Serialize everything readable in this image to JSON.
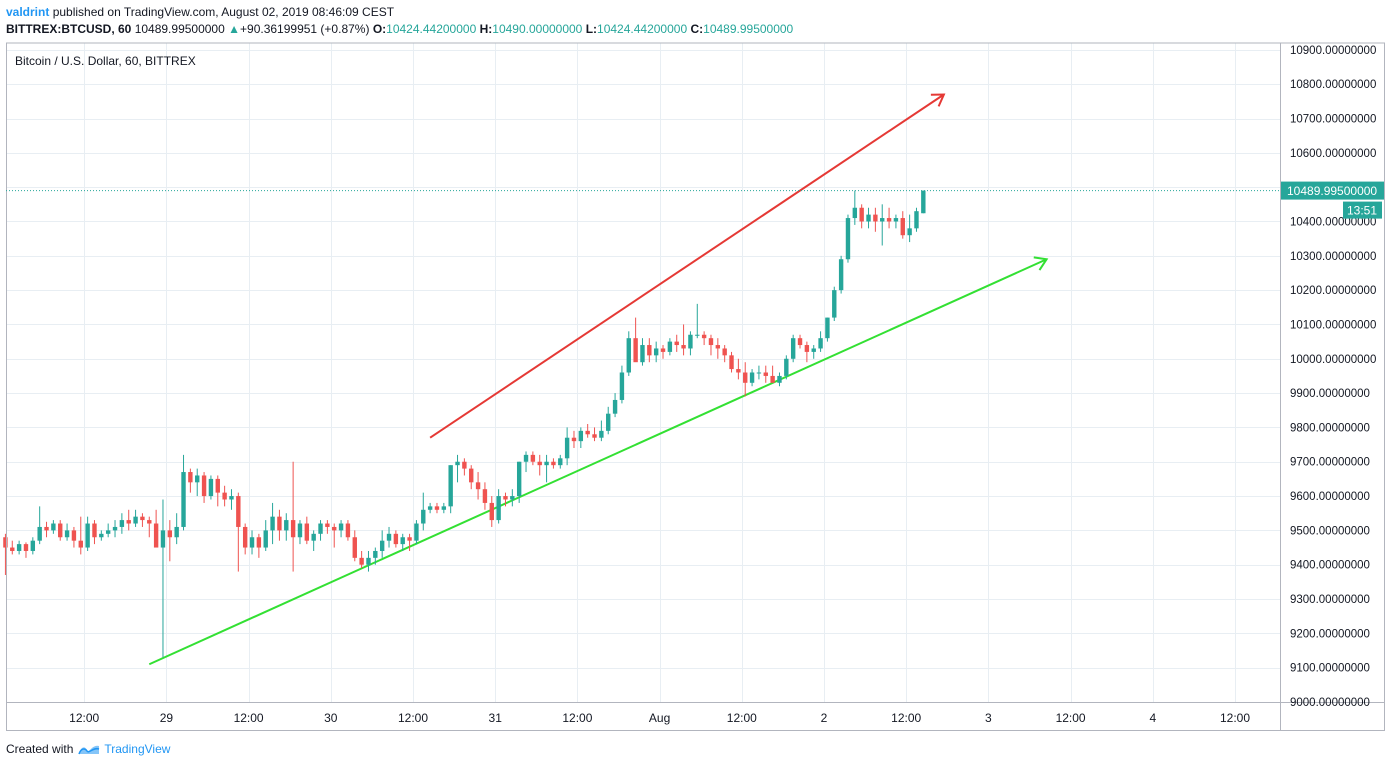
{
  "header": {
    "user": "valdrint",
    "published_text": "published on TradingView.com, August 02, 2019 08:46:09 CEST",
    "symbol": "BITTREX:BTCUSD, 60",
    "last_price": "10489.99500000",
    "change": "+90.36199951 (+0.87%)",
    "open_label": "O:",
    "open_value": "10424.44200000",
    "high_label": "H:",
    "high_value": "10490.00000000",
    "low_label": "L:",
    "low_value": "10424.44200000",
    "close_label": "C:",
    "close_value": "10489.99500000"
  },
  "footer": {
    "created_with": "Created with",
    "brand": "TradingView"
  },
  "colors": {
    "up": "#26a69a",
    "down": "#ef5350",
    "resistance": "#e53935",
    "support": "#33e033",
    "grid": "#e8eef3",
    "price_line": "#26a69a"
  },
  "chart_data": {
    "type": "candlestick",
    "title": "Bitcoin / U.S. Dollar, 60, BITTREX",
    "last_price_label": "10489.99500000",
    "countdown_label": "13:51",
    "ylim": [
      9000,
      10920
    ],
    "y_ticks": [
      {
        "value": 9000,
        "label": "9000.00000000"
      },
      {
        "value": 9100,
        "label": "9100.00000000"
      },
      {
        "value": 9200,
        "label": "9200.00000000"
      },
      {
        "value": 9300,
        "label": "9300.00000000"
      },
      {
        "value": 9400,
        "label": "9400.00000000"
      },
      {
        "value": 9500,
        "label": "9500.00000000"
      },
      {
        "value": 9600,
        "label": "9600.00000000"
      },
      {
        "value": 9700,
        "label": "9700.00000000"
      },
      {
        "value": 9800,
        "label": "9800.00000000"
      },
      {
        "value": 9900,
        "label": "9900.00000000"
      },
      {
        "value": 10000,
        "label": "10000.00000000"
      },
      {
        "value": 10100,
        "label": "10100.00000000"
      },
      {
        "value": 10200,
        "label": "10200.00000000"
      },
      {
        "value": 10300,
        "label": "10300.00000000"
      },
      {
        "value": 10400,
        "label": "10400.00000000"
      },
      {
        "value": 10500,
        "label": "10500.00000000"
      },
      {
        "value": 10600,
        "label": "10600.00000000"
      },
      {
        "value": 10700,
        "label": "10700.00000000"
      },
      {
        "value": 10800,
        "label": "10800.00000000"
      },
      {
        "value": 10900,
        "label": "10900.00000000"
      }
    ],
    "x_ticks": [
      {
        "label": "12:00",
        "t": 12
      },
      {
        "label": "29",
        "t": 24
      },
      {
        "label": "12:00",
        "t": 36
      },
      {
        "label": "30",
        "t": 48
      },
      {
        "label": "12:00",
        "t": 60
      },
      {
        "label": "31",
        "t": 72
      },
      {
        "label": "12:00",
        "t": 84
      },
      {
        "label": "Aug",
        "t": 96
      },
      {
        "label": "12:00",
        "t": 108
      },
      {
        "label": "2",
        "t": 120
      },
      {
        "label": "12:00",
        "t": 132
      },
      {
        "label": "3",
        "t": 144
      },
      {
        "label": "12:00",
        "t": 156
      },
      {
        "label": "4",
        "t": 168
      },
      {
        "label": "12:00",
        "t": 180
      }
    ],
    "candles": [
      [
        9480,
        9490,
        9370,
        9450
      ],
      [
        9450,
        9470,
        9430,
        9440
      ],
      [
        9440,
        9470,
        9430,
        9460
      ],
      [
        9460,
        9465,
        9420,
        9440
      ],
      [
        9440,
        9480,
        9430,
        9470
      ],
      [
        9470,
        9570,
        9460,
        9510
      ],
      [
        9510,
        9525,
        9480,
        9500
      ],
      [
        9500,
        9530,
        9490,
        9520
      ],
      [
        9520,
        9530,
        9470,
        9480
      ],
      [
        9480,
        9520,
        9470,
        9500
      ],
      [
        9500,
        9510,
        9450,
        9470
      ],
      [
        9470,
        9540,
        9430,
        9450
      ],
      [
        9450,
        9540,
        9440,
        9520
      ],
      [
        9520,
        9530,
        9460,
        9480
      ],
      [
        9480,
        9500,
        9470,
        9490
      ],
      [
        9490,
        9520,
        9480,
        9500
      ],
      [
        9500,
        9530,
        9480,
        9510
      ],
      [
        9510,
        9550,
        9490,
        9530
      ],
      [
        9530,
        9560,
        9500,
        9520
      ],
      [
        9520,
        9560,
        9510,
        9540
      ],
      [
        9540,
        9550,
        9510,
        9530
      ],
      [
        9530,
        9540,
        9480,
        9520
      ],
      [
        9520,
        9560,
        9460,
        9450
      ],
      [
        9450,
        9590,
        9130,
        9500
      ],
      [
        9500,
        9530,
        9410,
        9480
      ],
      [
        9480,
        9550,
        9460,
        9510
      ],
      [
        9510,
        9720,
        9500,
        9670
      ],
      [
        9670,
        9680,
        9610,
        9640
      ],
      [
        9640,
        9680,
        9600,
        9660
      ],
      [
        9660,
        9670,
        9580,
        9600
      ],
      [
        9600,
        9660,
        9590,
        9650
      ],
      [
        9650,
        9660,
        9570,
        9610
      ],
      [
        9610,
        9630,
        9570,
        9590
      ],
      [
        9590,
        9620,
        9560,
        9600
      ],
      [
        9600,
        9610,
        9380,
        9510
      ],
      [
        9510,
        9520,
        9430,
        9450
      ],
      [
        9450,
        9500,
        9430,
        9480
      ],
      [
        9480,
        9490,
        9420,
        9450
      ],
      [
        9450,
        9530,
        9440,
        9500
      ],
      [
        9500,
        9580,
        9460,
        9540
      ],
      [
        9540,
        9560,
        9470,
        9500
      ],
      [
        9500,
        9550,
        9470,
        9530
      ],
      [
        9530,
        9700,
        9380,
        9480
      ],
      [
        9480,
        9530,
        9460,
        9520
      ],
      [
        9520,
        9540,
        9460,
        9470
      ],
      [
        9470,
        9500,
        9440,
        9490
      ],
      [
        9490,
        9530,
        9470,
        9520
      ],
      [
        9520,
        9530,
        9490,
        9510
      ],
      [
        9510,
        9520,
        9450,
        9500
      ],
      [
        9500,
        9530,
        9480,
        9520
      ],
      [
        9520,
        9530,
        9470,
        9480
      ],
      [
        9480,
        9500,
        9410,
        9420
      ],
      [
        9420,
        9440,
        9390,
        9400
      ],
      [
        9400,
        9440,
        9380,
        9420
      ],
      [
        9420,
        9450,
        9400,
        9440
      ],
      [
        9440,
        9500,
        9420,
        9470
      ],
      [
        9470,
        9510,
        9450,
        9490
      ],
      [
        9490,
        9500,
        9450,
        9460
      ],
      [
        9460,
        9490,
        9440,
        9480
      ],
      [
        9480,
        9490,
        9440,
        9470
      ],
      [
        9470,
        9530,
        9460,
        9520
      ],
      [
        9520,
        9610,
        9500,
        9560
      ],
      [
        9560,
        9580,
        9550,
        9570
      ],
      [
        9570,
        9580,
        9550,
        9560
      ],
      [
        9560,
        9580,
        9550,
        9570
      ],
      [
        9570,
        9690,
        9550,
        9690
      ],
      [
        9690,
        9720,
        9640,
        9700
      ],
      [
        9700,
        9710,
        9660,
        9680
      ],
      [
        9680,
        9690,
        9620,
        9640
      ],
      [
        9640,
        9670,
        9590,
        9620
      ],
      [
        9620,
        9640,
        9560,
        9580
      ],
      [
        9580,
        9600,
        9510,
        9530
      ],
      [
        9530,
        9620,
        9520,
        9600
      ],
      [
        9600,
        9610,
        9570,
        9590
      ],
      [
        9590,
        9620,
        9570,
        9600
      ],
      [
        9600,
        9700,
        9580,
        9700
      ],
      [
        9700,
        9730,
        9670,
        9720
      ],
      [
        9720,
        9730,
        9690,
        9700
      ],
      [
        9700,
        9720,
        9660,
        9690
      ],
      [
        9690,
        9720,
        9640,
        9700
      ],
      [
        9700,
        9710,
        9680,
        9690
      ],
      [
        9690,
        9720,
        9680,
        9710
      ],
      [
        9710,
        9800,
        9690,
        9770
      ],
      [
        9770,
        9790,
        9740,
        9760
      ],
      [
        9760,
        9800,
        9740,
        9790
      ],
      [
        9790,
        9810,
        9770,
        9780
      ],
      [
        9780,
        9800,
        9760,
        9770
      ],
      [
        9770,
        9820,
        9760,
        9790
      ],
      [
        9790,
        9860,
        9780,
        9840
      ],
      [
        9840,
        9900,
        9830,
        9880
      ],
      [
        9880,
        9980,
        9870,
        9960
      ],
      [
        9960,
        10080,
        9950,
        10060
      ],
      [
        10060,
        10120,
        10000,
        9990
      ],
      [
        9990,
        10060,
        9980,
        10040
      ],
      [
        10040,
        10060,
        9990,
        10010
      ],
      [
        10010,
        10050,
        9990,
        10030
      ],
      [
        10030,
        10040,
        10000,
        10020
      ],
      [
        10020,
        10060,
        10010,
        10050
      ],
      [
        10050,
        10070,
        10020,
        10040
      ],
      [
        10040,
        10100,
        10010,
        10030
      ],
      [
        10030,
        10080,
        10010,
        10070
      ],
      [
        10070,
        10160,
        10060,
        10070
      ],
      [
        10070,
        10080,
        10040,
        10060
      ],
      [
        10060,
        10070,
        10010,
        10040
      ],
      [
        10040,
        10060,
        10000,
        10030
      ],
      [
        10030,
        10040,
        9990,
        10010
      ],
      [
        10010,
        10020,
        9960,
        9970
      ],
      [
        9970,
        10000,
        9940,
        9960
      ],
      [
        9960,
        9990,
        9890,
        9930
      ],
      [
        9930,
        9970,
        9920,
        9960
      ],
      [
        9960,
        9980,
        9940,
        9960
      ],
      [
        9960,
        9980,
        9930,
        9950
      ],
      [
        9950,
        9980,
        9930,
        9930
      ],
      [
        9930,
        9960,
        9920,
        9950
      ],
      [
        9950,
        10010,
        9940,
        10000
      ],
      [
        10000,
        10070,
        9990,
        10060
      ],
      [
        10060,
        10070,
        10030,
        10040
      ],
      [
        10040,
        10050,
        9990,
        10020
      ],
      [
        10020,
        10040,
        10000,
        10030
      ],
      [
        10030,
        10080,
        10020,
        10060
      ],
      [
        10060,
        10120,
        10050,
        10120
      ],
      [
        10120,
        10210,
        10110,
        10200
      ],
      [
        10200,
        10300,
        10190,
        10290
      ],
      [
        10290,
        10420,
        10280,
        10410
      ],
      [
        10410,
        10490,
        10390,
        10440
      ],
      [
        10440,
        10450,
        10380,
        10400
      ],
      [
        10400,
        10440,
        10380,
        10420
      ],
      [
        10420,
        10440,
        10370,
        10400
      ],
      [
        10400,
        10450,
        10330,
        10410
      ],
      [
        10410,
        10440,
        10380,
        10400
      ],
      [
        10400,
        10420,
        10380,
        10410
      ],
      [
        10410,
        10430,
        10350,
        10360
      ],
      [
        10360,
        10420,
        10340,
        10380
      ],
      [
        10380,
        10440,
        10370,
        10430
      ],
      [
        10424,
        10490,
        10424,
        10490
      ]
    ],
    "trendlines": [
      {
        "name": "resistance",
        "color": "#e53935",
        "t1": 62.5,
        "p1": 9770,
        "t2": 114.5,
        "p2": 10490,
        "t3": 137.5,
        "p3": 10770
      },
      {
        "name": "support",
        "color": "#33e033",
        "t1": 21.5,
        "p1": 9110,
        "t2": 69.5,
        "p2": 9520,
        "t3": 152.5,
        "p3": 10290
      }
    ]
  }
}
